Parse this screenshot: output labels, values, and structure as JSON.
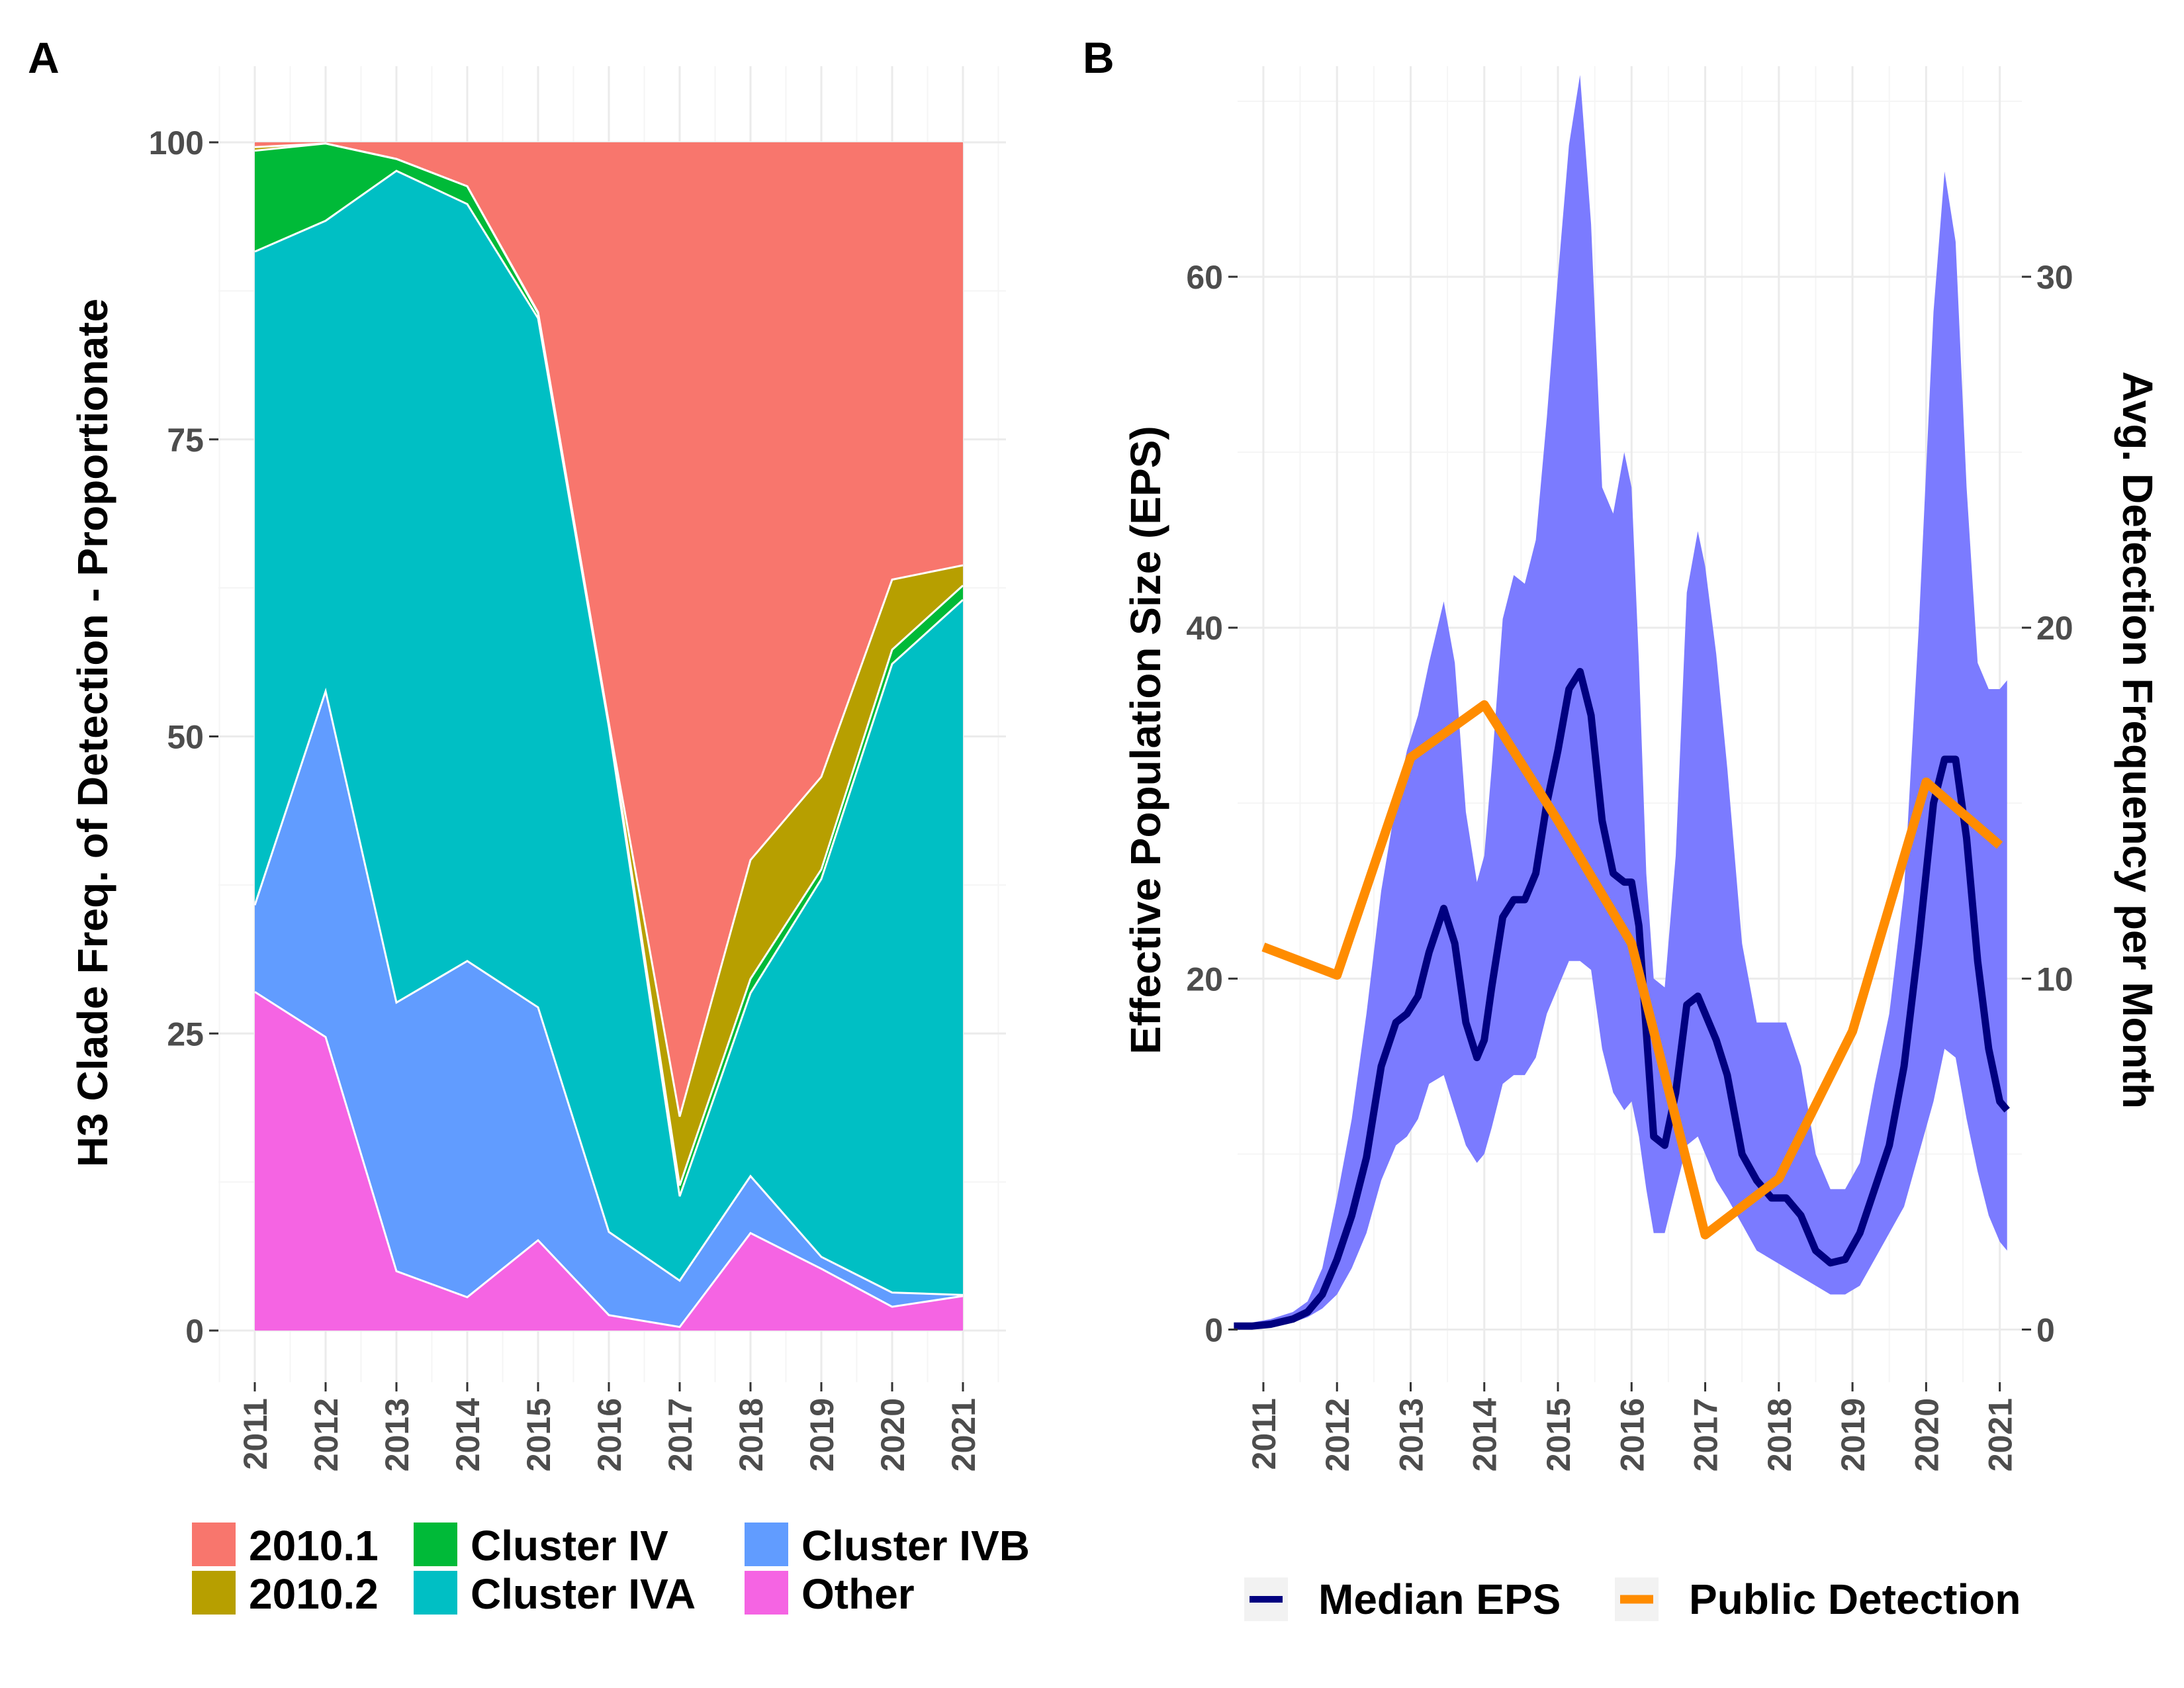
{
  "panel_a_tag": "A",
  "panel_b_tag": "B",
  "colors": {
    "2010.1": "#F8766D",
    "2010.2": "#B79F00",
    "Cluster IV": "#00BA38",
    "Cluster IVA": "#00BFC4",
    "Cluster IVB": "#619CFF",
    "Other": "#F564E3",
    "median_eps": "#000080",
    "public_detection": "#FF8C00",
    "eps_ribbon": "#7B7BFF"
  },
  "chart_data": [
    {
      "type": "area",
      "stacked": true,
      "panel": "A",
      "ylabel": "H3 Clade Freq. of Detection - Proportionate",
      "xlabel": "",
      "ylim": [
        0,
        100
      ],
      "yticks": [
        "0",
        "25",
        "50",
        "75",
        "100"
      ],
      "x": [
        "2011",
        "2012",
        "2013",
        "2014",
        "2015",
        "2016",
        "2017",
        "2018",
        "2019",
        "2020",
        "2021"
      ],
      "series": [
        {
          "name": "Other",
          "values": [
            28.5,
            24.7,
            5.0,
            2.8,
            7.6,
            1.3,
            0.3,
            8.2,
            5.2,
            2.0,
            2.9
          ]
        },
        {
          "name": "Cluster IVB",
          "values": [
            7.3,
            29.1,
            22.6,
            28.3,
            19.6,
            7.0,
            3.9,
            4.8,
            1.0,
            1.2,
            0.1
          ]
        },
        {
          "name": "Cluster IVA",
          "values": [
            55.0,
            39.6,
            70.0,
            63.7,
            58.0,
            42.5,
            7.1,
            15.4,
            31.8,
            52.9,
            58.5
          ]
        },
        {
          "name": "Cluster IV",
          "values": [
            8.5,
            6.5,
            1.0,
            1.5,
            0.4,
            0.3,
            0.9,
            1.2,
            0.8,
            1.2,
            1.2
          ]
        },
        {
          "name": "2010.2",
          "values": [
            0.3,
            0.0,
            0.0,
            0.0,
            0.1,
            0.0,
            5.8,
            10.0,
            7.8,
            5.9,
            1.7
          ]
        },
        {
          "name": "2010.1",
          "values": [
            0.4,
            0.1,
            1.4,
            3.7,
            14.3,
            48.9,
            82.0,
            60.4,
            53.4,
            36.8,
            35.6
          ]
        }
      ],
      "legend": {
        "placement": "bottom",
        "items": [
          "2010.1",
          "2010.2",
          "Cluster IV",
          "Cluster IVA",
          "Cluster IVB",
          "Other"
        ]
      }
    },
    {
      "type": "line",
      "panel": "B",
      "ylabel": "Effective Population Size (EPS)",
      "y2label": "Avg. Detection Frequency per Month",
      "ylim": [
        -3,
        72
      ],
      "y2lim": [
        -1.5,
        36
      ],
      "xlim": [
        2010.65,
        2021.3
      ],
      "yticks": [
        "0",
        "20",
        "40",
        "60"
      ],
      "y2ticks": [
        "0",
        "10",
        "20",
        "30"
      ],
      "xticks": [
        "2011",
        "2012",
        "2013",
        "2014",
        "2015",
        "2016",
        "2017",
        "2018",
        "2019",
        "2020",
        "2021"
      ],
      "series": [
        {
          "name": "Median EPS",
          "axis": "left",
          "x": [
            2010.6,
            2010.85,
            2011.1,
            2011.4,
            2011.6,
            2011.8,
            2012.0,
            2012.2,
            2012.4,
            2012.6,
            2012.8,
            2012.95,
            2013.1,
            2013.25,
            2013.45,
            2013.6,
            2013.75,
            2013.9,
            2014.0,
            2014.1,
            2014.25,
            2014.4,
            2014.55,
            2014.7,
            2014.85,
            2015.0,
            2015.15,
            2015.3,
            2015.45,
            2015.6,
            2015.75,
            2015.9,
            2016.0,
            2016.1,
            2016.2,
            2016.3,
            2016.45,
            2016.6,
            2016.75,
            2016.9,
            2017.0,
            2017.15,
            2017.3,
            2017.5,
            2017.7,
            2017.9,
            2018.1,
            2018.3,
            2018.5,
            2018.7,
            2018.9,
            2019.1,
            2019.3,
            2019.5,
            2019.7,
            2019.9,
            2020.1,
            2020.25,
            2020.4,
            2020.55,
            2020.7,
            2020.85,
            2021.0,
            2021.1
          ],
          "y": [
            0.2,
            0.2,
            0.3,
            0.6,
            1.0,
            2.0,
            4.0,
            6.5,
            9.8,
            15.0,
            17.5,
            18.0,
            19.0,
            21.5,
            24.0,
            22.0,
            17.5,
            15.5,
            16.5,
            19.5,
            23.5,
            24.5,
            24.5,
            26.0,
            30.0,
            33.0,
            36.5,
            37.5,
            35.0,
            29.0,
            26.0,
            25.5,
            25.5,
            23.0,
            17.0,
            11.0,
            10.5,
            13.5,
            18.5,
            19.0,
            18.0,
            16.5,
            14.5,
            10.0,
            8.5,
            7.5,
            7.5,
            6.5,
            4.5,
            3.8,
            4.0,
            5.5,
            8.0,
            10.5,
            15.0,
            22.0,
            30.0,
            32.5,
            32.5,
            28.0,
            21.0,
            16.0,
            13.0,
            12.5
          ]
        },
        {
          "name": "EPS interval",
          "axis": "left",
          "x": [
            2010.6,
            2010.85,
            2011.1,
            2011.4,
            2011.6,
            2011.8,
            2012.0,
            2012.2,
            2012.4,
            2012.6,
            2012.8,
            2012.95,
            2013.1,
            2013.25,
            2013.45,
            2013.6,
            2013.75,
            2013.9,
            2014.0,
            2014.1,
            2014.25,
            2014.4,
            2014.55,
            2014.7,
            2014.85,
            2015.0,
            2015.15,
            2015.3,
            2015.45,
            2015.6,
            2015.75,
            2015.9,
            2016.0,
            2016.1,
            2016.2,
            2016.3,
            2016.45,
            2016.6,
            2016.75,
            2016.9,
            2017.0,
            2017.15,
            2017.3,
            2017.5,
            2017.7,
            2017.9,
            2018.1,
            2018.3,
            2018.5,
            2018.7,
            2018.9,
            2019.1,
            2019.3,
            2019.5,
            2019.7,
            2019.9,
            2020.1,
            2020.25,
            2020.4,
            2020.55,
            2020.7,
            2020.85,
            2021.0,
            2021.1
          ],
          "lower": [
            0.1,
            0.1,
            0.2,
            0.4,
            0.7,
            1.2,
            2.0,
            3.5,
            5.5,
            8.5,
            10.5,
            11.0,
            12.0,
            14.0,
            14.5,
            12.5,
            10.5,
            9.5,
            10.0,
            11.5,
            14.0,
            14.5,
            14.5,
            15.5,
            18.0,
            19.5,
            21.0,
            21.0,
            20.5,
            16.0,
            13.5,
            12.5,
            13.0,
            11.0,
            8.0,
            5.5,
            5.5,
            8.0,
            10.5,
            11.0,
            10.0,
            8.5,
            7.5,
            6.0,
            4.5,
            4.0,
            3.5,
            3.0,
            2.5,
            2.0,
            2.0,
            2.5,
            4.0,
            5.5,
            7.0,
            10.0,
            13.0,
            16.0,
            15.5,
            12.0,
            9.0,
            6.5,
            5.0,
            4.5
          ],
          "upper": [
            0.4,
            0.4,
            0.6,
            1.0,
            1.6,
            3.5,
            7.5,
            12.0,
            18.0,
            25.0,
            30.0,
            33.0,
            35.0,
            38.0,
            41.5,
            38.0,
            29.5,
            25.5,
            27.0,
            32.0,
            40.5,
            43.0,
            42.5,
            45.0,
            52.0,
            60.0,
            67.5,
            71.5,
            63.0,
            48.0,
            46.5,
            50.0,
            48.0,
            38.0,
            26.0,
            20.0,
            19.5,
            27.0,
            42.0,
            45.5,
            43.5,
            38.5,
            32.0,
            22.0,
            17.5,
            17.5,
            17.5,
            15.0,
            10.0,
            8.0,
            8.0,
            9.5,
            14.0,
            18.0,
            25.0,
            40.0,
            58.0,
            66.0,
            62.0,
            48.0,
            38.0,
            36.5,
            36.5,
            37.0
          ]
        },
        {
          "name": "Public Detection",
          "axis": "right",
          "x": [
            2011,
            2012,
            2013,
            2014,
            2015,
            2016,
            2017,
            2018,
            2019,
            2020,
            2021
          ],
          "y": [
            10.9,
            10.1,
            16.3,
            17.8,
            14.5,
            11.0,
            2.7,
            4.3,
            8.5,
            15.6,
            13.8
          ]
        }
      ],
      "legend": {
        "placement": "bottom",
        "items": [
          "Median EPS",
          "Public Detection"
        ]
      }
    }
  ]
}
